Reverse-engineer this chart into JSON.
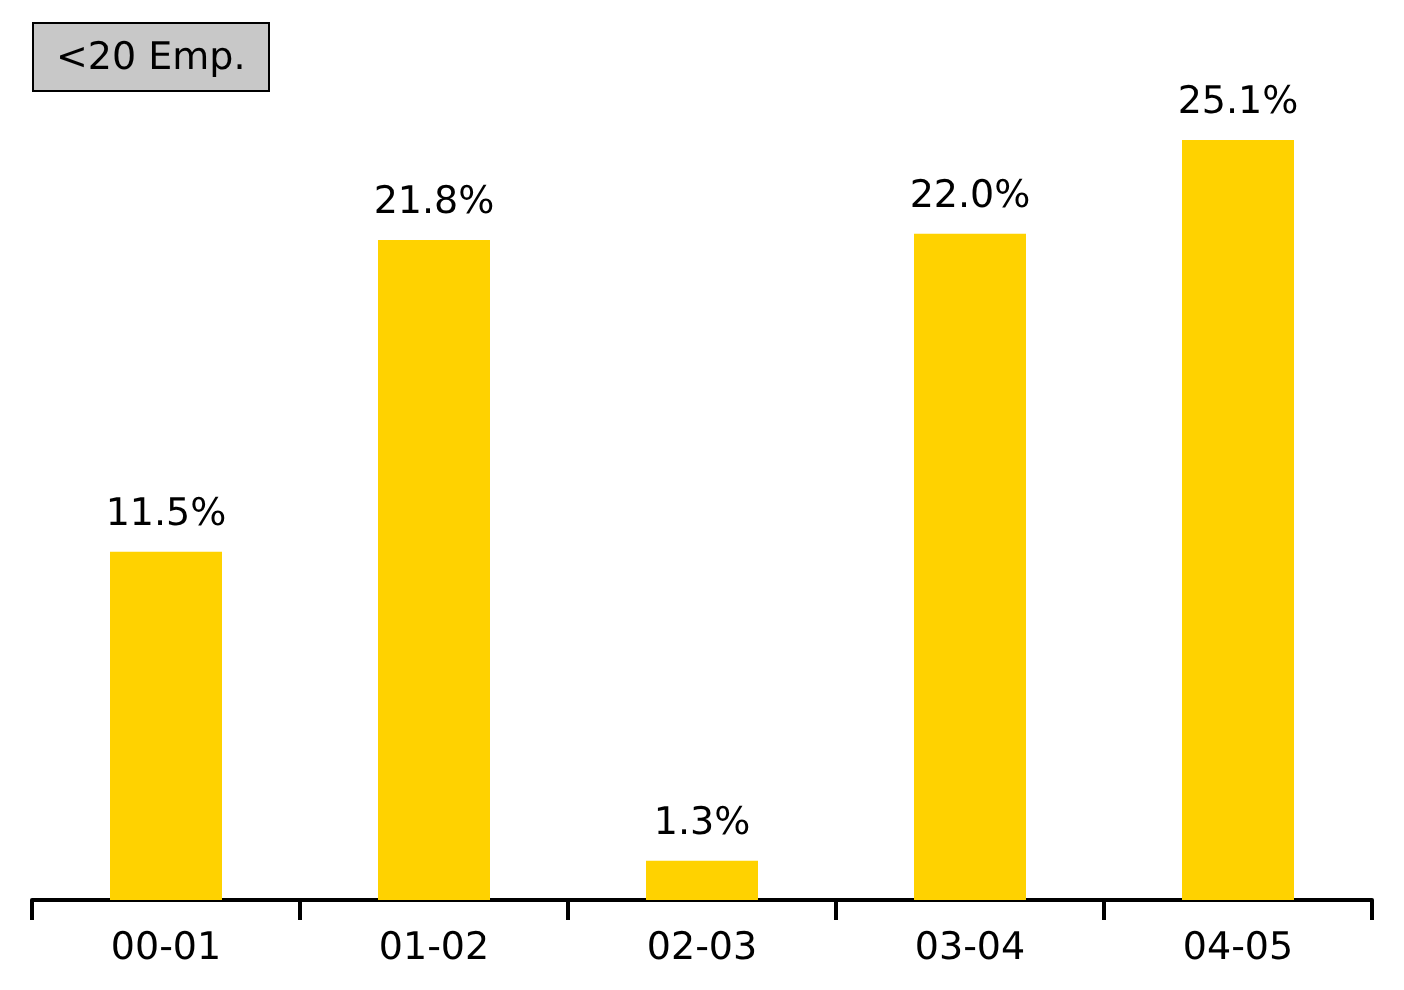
{
  "chart_data": {
    "type": "bar",
    "title": "<20 Emp.",
    "categories": [
      "00-01",
      "01-02",
      "02-03",
      "03-04",
      "04-05"
    ],
    "values": [
      11.5,
      21.8,
      1.3,
      22.0,
      25.1
    ],
    "value_labels": [
      "11.5%",
      "21.8%",
      "1.3%",
      "22.0%",
      "25.1%"
    ],
    "color": "#ffd200",
    "grid": false
  }
}
